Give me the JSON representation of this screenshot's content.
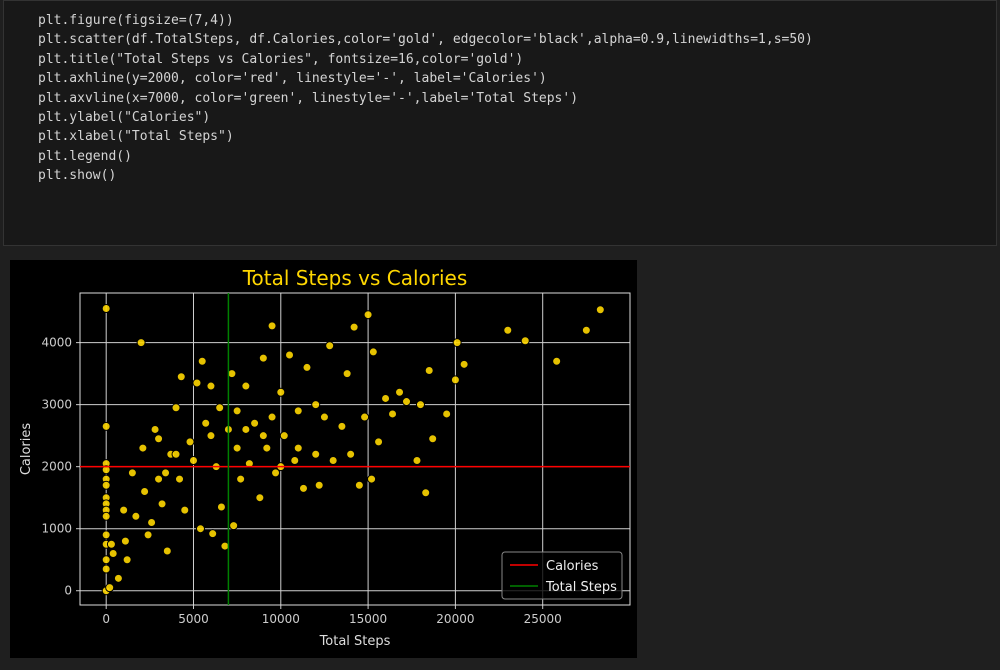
{
  "code": {
    "lines": [
      "plt.figure(figsize=(7,4))",
      "plt.scatter(df.TotalSteps, df.Calories,color='gold', edgecolor='black',alpha=0.9,linewidths=1,s=50)",
      "plt.title(\"Total Steps vs Calories\", fontsize=16,color='gold')",
      "plt.axhline(y=2000, color='red', linestyle='-', label='Calories')",
      "plt.axvline(x=7000, color='green', linestyle='-',label='Total Steps')",
      "plt.ylabel(\"Calories\")",
      "plt.xlabel(\"Total Steps\")",
      "plt.legend()",
      "plt.show()"
    ]
  },
  "chart_data": {
    "type": "scatter",
    "title": "Total Steps vs Calories",
    "xlabel": "Total Steps",
    "ylabel": "Calories",
    "color": "gold",
    "edgecolor": "black",
    "title_color": "gold",
    "x": [
      0,
      0,
      0,
      0,
      0,
      0,
      0,
      0,
      0,
      0,
      0,
      0,
      0,
      0,
      0,
      200,
      300,
      400,
      700,
      1000,
      1100,
      1200,
      1500,
      1700,
      2000,
      2100,
      2200,
      2400,
      2600,
      2800,
      3000,
      3200,
      3400,
      3500,
      3700,
      4000,
      4200,
      4300,
      4500,
      4800,
      5000,
      5200,
      5400,
      5500,
      5700,
      6000,
      6100,
      6300,
      6500,
      6600,
      6800,
      7000,
      7200,
      7300,
      7500,
      7700,
      8000,
      8200,
      8500,
      8800,
      9000,
      9200,
      9500,
      9700,
      10000,
      10200,
      10500,
      10800,
      11000,
      11300,
      11500,
      12000,
      12200,
      12500,
      12800,
      13000,
      13500,
      13800,
      14000,
      14200,
      14500,
      14800,
      15000,
      15200,
      15300,
      15600,
      16000,
      16400,
      16800,
      17200,
      17800,
      18000,
      18300,
      18500,
      18700,
      19500,
      20000,
      20100,
      20500,
      23000,
      24000,
      25800,
      27500,
      28300,
      9000,
      11000,
      12000,
      6000,
      8000,
      3000,
      4000,
      10000,
      9500,
      7500
    ],
    "y": [
      4550,
      2650,
      2050,
      1950,
      1800,
      1700,
      1500,
      1400,
      1300,
      1200,
      900,
      750,
      500,
      350,
      0,
      50,
      750,
      600,
      200,
      1300,
      800,
      500,
      1900,
      1200,
      4000,
      2300,
      1600,
      900,
      1100,
      2600,
      2450,
      1400,
      1900,
      640,
      2200,
      2950,
      1800,
      3450,
      1300,
      2400,
      2100,
      3350,
      1000,
      3700,
      2700,
      3300,
      920,
      2000,
      2950,
      1350,
      720,
      2600,
      3500,
      1050,
      2300,
      1800,
      3300,
      2050,
      2700,
      1500,
      3750,
      2300,
      4270,
      1900,
      3200,
      2500,
      3800,
      2100,
      2900,
      1650,
      3600,
      2200,
      1700,
      2800,
      3950,
      2100,
      2650,
      3500,
      2200,
      4250,
      1700,
      2800,
      4450,
      1800,
      3850,
      2400,
      3100,
      2850,
      3200,
      3050,
      2100,
      3000,
      1580,
      3550,
      2450,
      2850,
      3400,
      4000,
      3650,
      4200,
      4030,
      3700,
      4200,
      4530,
      2500,
      2300,
      3000,
      2500,
      2600,
      1800,
      2200,
      2000,
      2800,
      2900
    ],
    "lines": [
      {
        "name": "Calories",
        "orientation": "horizontal",
        "value": 2000,
        "color": "red"
      },
      {
        "name": "Total Steps",
        "orientation": "vertical",
        "value": 7000,
        "color": "green"
      }
    ],
    "xlim": [
      -1500,
      30000
    ],
    "ylim": [
      -230,
      4800
    ],
    "xticks": [
      0,
      5000,
      10000,
      15000,
      20000,
      25000
    ],
    "yticks": [
      0,
      1000,
      2000,
      3000,
      4000
    ],
    "grid": true,
    "legend": "lower right"
  }
}
